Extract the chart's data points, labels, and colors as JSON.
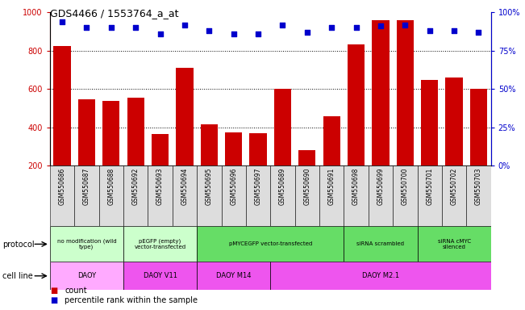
{
  "title": "GDS4466 / 1553764_a_at",
  "samples": [
    "GSM550686",
    "GSM550687",
    "GSM550688",
    "GSM550692",
    "GSM550693",
    "GSM550694",
    "GSM550695",
    "GSM550696",
    "GSM550697",
    "GSM550689",
    "GSM550690",
    "GSM550691",
    "GSM550698",
    "GSM550699",
    "GSM550700",
    "GSM550701",
    "GSM550702",
    "GSM550703"
  ],
  "counts": [
    825,
    548,
    537,
    555,
    365,
    710,
    415,
    375,
    370,
    600,
    280,
    460,
    835,
    960,
    960,
    650,
    660,
    600
  ],
  "percentiles": [
    94,
    90,
    90,
    90,
    86,
    92,
    88,
    86,
    86,
    92,
    87,
    90,
    90,
    91,
    92,
    88,
    88,
    87
  ],
  "bar_color": "#cc0000",
  "dot_color": "#0000cc",
  "ylim_left": [
    200,
    1000
  ],
  "ylim_right": [
    0,
    100
  ],
  "yticks_left": [
    200,
    400,
    600,
    800,
    1000
  ],
  "yticks_right": [
    0,
    25,
    50,
    75,
    100
  ],
  "grid_values": [
    400,
    600,
    800
  ],
  "protocol_groups": [
    {
      "label": "no modification (wild\ntype)",
      "start": 0,
      "end": 2,
      "color": "#ccffcc"
    },
    {
      "label": "pEGFP (empty)\nvector-transfected",
      "start": 3,
      "end": 5,
      "color": "#ccffcc"
    },
    {
      "label": "pMYCEGFP vector-transfected",
      "start": 6,
      "end": 11,
      "color": "#66dd66"
    },
    {
      "label": "siRNA scrambled",
      "start": 12,
      "end": 14,
      "color": "#66dd66"
    },
    {
      "label": "siRNA cMYC\nsilenced",
      "start": 15,
      "end": 17,
      "color": "#66dd66"
    }
  ],
  "cell_line_groups": [
    {
      "label": "DAOY",
      "start": 0,
      "end": 2,
      "color": "#ffaaff"
    },
    {
      "label": "DAOY V11",
      "start": 3,
      "end": 5,
      "color": "#ee55ee"
    },
    {
      "label": "DAOY M14",
      "start": 6,
      "end": 8,
      "color": "#ee55ee"
    },
    {
      "label": "DAOY M2.1",
      "start": 9,
      "end": 17,
      "color": "#ee55ee"
    }
  ],
  "col_bg_color": "#dddddd",
  "legend_count_color": "#cc0000",
  "legend_dot_color": "#0000cc",
  "bg_color": "#ffffff",
  "tick_label_color_left": "#cc0000",
  "tick_label_color_right": "#0000cc"
}
